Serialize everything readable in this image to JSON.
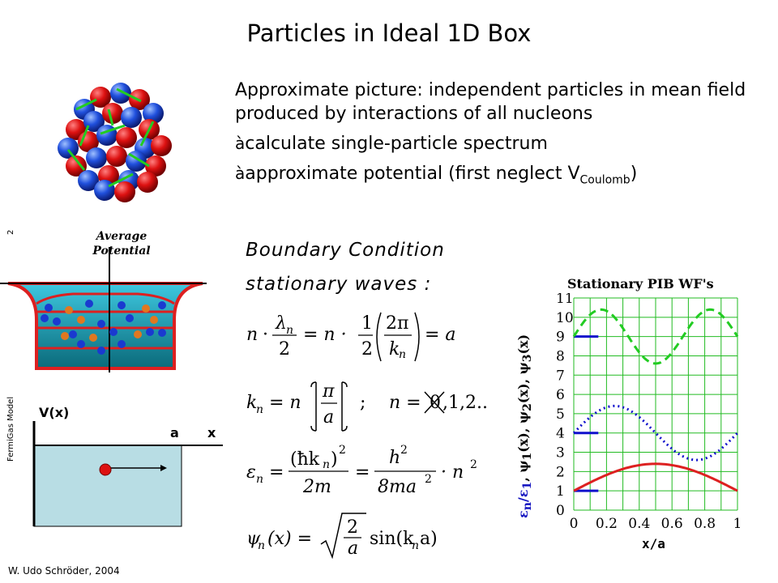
{
  "slide": {
    "title": "Particles in Ideal 1D Box",
    "bullet1": "Approximate picture: independent particles in mean field produced by interactions of all nucleons",
    "bullet2_arrow": "à",
    "bullet2_text": "calculate single-particle spectrum",
    "bullet3_arrow": "à",
    "bullet3_text": "approximate potential (first neglect V",
    "bullet3_sub": "Coulomb",
    "bullet3_end": ")",
    "page_number": "2",
    "side_label": "FermiGas Model",
    "footer": "W. Udo Schröder, 2004"
  },
  "diagram": {
    "average_line1": "Average",
    "average_line2": "Potential",
    "vx_label": "V(x)",
    "a_label": "a",
    "x_label": "x"
  },
  "equations": {
    "boundary_condition": "Boundary Condition",
    "stationary_waves": "stationary waves :",
    "eq1_n": "n",
    "eq1_lambda": "λ",
    "eq1_n_sub": "n",
    "eq1_two": "2",
    "eq1_eq": "= n ·",
    "eq1_one": "1",
    "eq1_two2": "2",
    "eq1_2pi": "2π",
    "eq1_k": "k",
    "eq1_k_sub": "n",
    "eq1_a": "= a",
    "eq2_k": "k",
    "eq2_k_sub": "n",
    "eq2_eq": "= n",
    "eq2_pi": "π",
    "eq2_a": "a",
    "eq2_semicolon": ";",
    "eq2_n": "n =",
    "eq2_zero": "0",
    "eq2_rest": ",1,2..",
    "eq3_eps": "ε",
    "eq3_eps_sub": "n",
    "eq3_eq": "=",
    "eq3_num": "(ħk",
    "eq3_num_sub": "n",
    "eq3_num_close": ")",
    "eq3_sq": "2",
    "eq3_den": "2m",
    "eq3_eq2": "=",
    "eq3_h2": "h",
    "eq3_h2_sq": "2",
    "eq3_den2": "8ma",
    "eq3_den2_sq": "2",
    "eq3_n2": "· n",
    "eq3_n2_sq": "2",
    "eq4_psi": "ψ",
    "eq4_psi_sub": "n",
    "eq4_arg": "(x) =",
    "eq4_two": "2",
    "eq4_a": "a",
    "eq4_sin": "sin(k",
    "eq4_sin_sub": "n",
    "eq4_sin_end": "a)"
  },
  "chart_data": {
    "type": "line",
    "title": "Stationary PIB WF's",
    "xlabel": "x/a",
    "ylabel_parts": [
      "ε",
      "n",
      "/",
      "ε",
      "1",
      ", ψ",
      "1",
      "(x), ψ",
      "2",
      "(x), ψ",
      "3",
      "(x)"
    ],
    "xlim": [
      0,
      1
    ],
    "ylim": [
      0,
      11
    ],
    "x_ticks": [
      "0",
      "0.2",
      "0.4",
      "0.6",
      "0.8",
      "1"
    ],
    "y_ticks": [
      "0",
      "1",
      "2",
      "3",
      "4",
      "5",
      "6",
      "7",
      "8",
      "9",
      "10",
      "11"
    ],
    "grid": true,
    "series": [
      {
        "offset": 1,
        "amplitude": 1.4,
        "mode": 1,
        "color": "#dd2020",
        "style": "solid"
      },
      {
        "offset": 4,
        "amplitude": 1.4,
        "mode": 2,
        "color": "#1010cc",
        "style": "dotted"
      },
      {
        "offset": 9,
        "amplitude": 1.4,
        "mode": 3,
        "color": "#22cc22",
        "style": "dashed"
      }
    ],
    "energy_levels": [
      1,
      4,
      9
    ],
    "level_color": "#1010cc",
    "grid_color": "#22bb22"
  }
}
